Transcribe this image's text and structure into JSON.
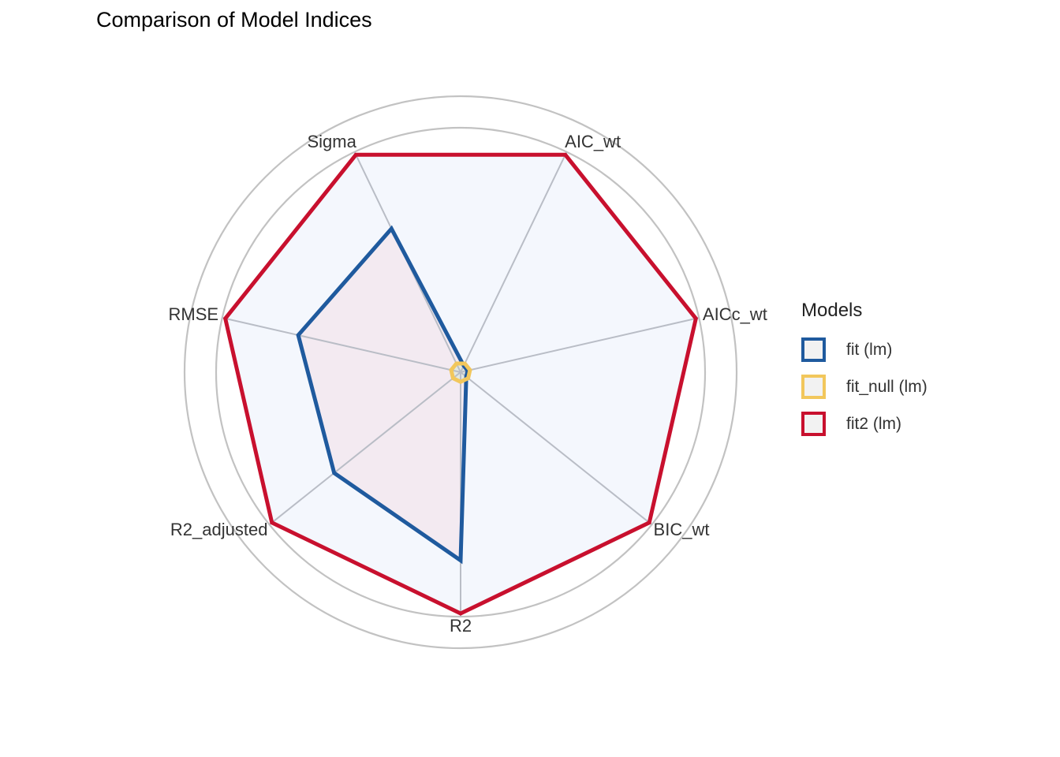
{
  "chart_data": {
    "type": "radar",
    "title": "Comparison of Model Indices",
    "categories": [
      "Sigma",
      "AIC_wt",
      "AICc_wt",
      "BIC_wt",
      "R2",
      "R2_adjusted",
      "RMSE"
    ],
    "rlim": [
      0,
      1
    ],
    "grid": true,
    "legend_title": "Models",
    "legend_position": "right",
    "series": [
      {
        "name": "fit (lm)",
        "color": "#1F5A9E",
        "fill": "#EFF3FF",
        "values": [
          0.66,
          0.03,
          0.03,
          0.03,
          0.78,
          0.67,
          0.69
        ]
      },
      {
        "name": "fit_null (lm)",
        "color": "#F2C75C",
        "fill": "#F5F0E6",
        "values": [
          0.04,
          0.04,
          0.04,
          0.04,
          0.04,
          0.04,
          0.04
        ]
      },
      {
        "name": "fit2 (lm)",
        "color": "#C8102E",
        "fill": "#F4F7FD",
        "values": [
          1.0,
          1.0,
          1.0,
          1.0,
          1.0,
          1.0,
          1.0
        ]
      }
    ]
  }
}
